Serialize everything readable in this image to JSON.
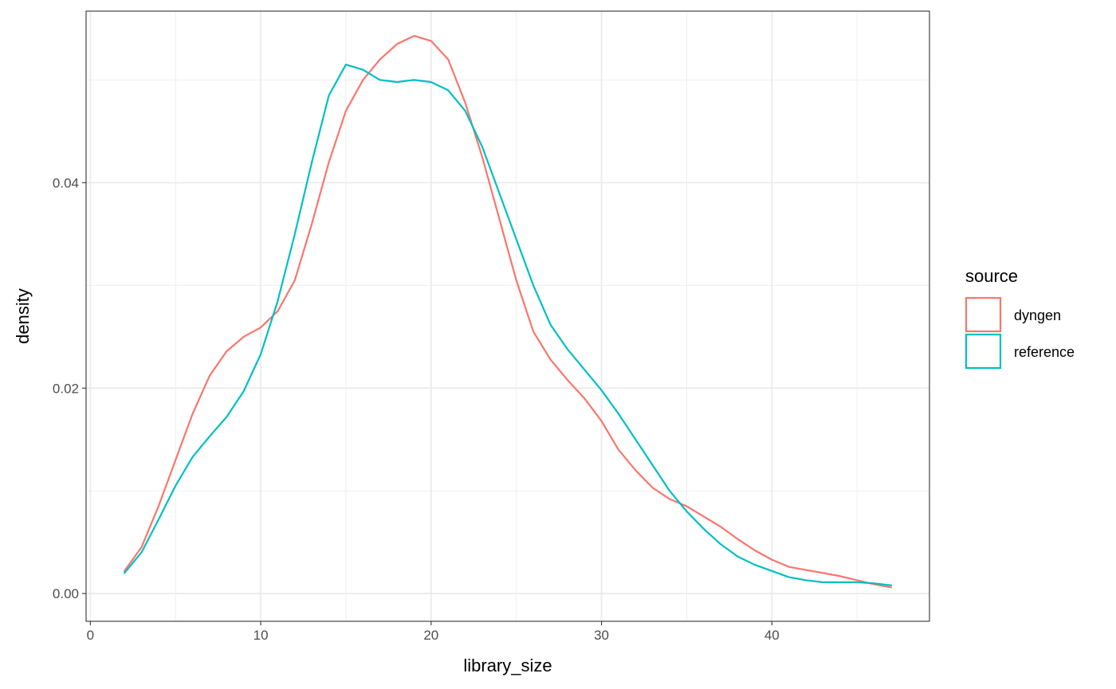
{
  "chart_data": {
    "type": "line",
    "title": "",
    "xlabel": "library_size",
    "ylabel": "density",
    "xlim": [
      -0.25,
      49.25
    ],
    "ylim": [
      -0.0027,
      0.0567
    ],
    "x_ticks": [
      0,
      10,
      20,
      30,
      40
    ],
    "x_tick_labels": [
      "0",
      "10",
      "20",
      "30",
      "40"
    ],
    "y_ticks": [
      0.0,
      0.02,
      0.04
    ],
    "y_tick_labels": [
      "0.00",
      "0.02",
      "0.04"
    ],
    "grid": true,
    "legend": {
      "title": "source",
      "position": "right"
    },
    "series": [
      {
        "name": "dyngen",
        "color": "#F8766D",
        "x": [
          2,
          3,
          4,
          5,
          6,
          7,
          8,
          9,
          10,
          11,
          12,
          13,
          14,
          15,
          16,
          17,
          18,
          19,
          20,
          21,
          22,
          23,
          24,
          25,
          26,
          27,
          28,
          29,
          30,
          31,
          32,
          33,
          34,
          35,
          36,
          37,
          38,
          39,
          40,
          41,
          42,
          43,
          44,
          45,
          46,
          47
        ],
        "y": [
          0.0022,
          0.0045,
          0.0085,
          0.013,
          0.0175,
          0.0212,
          0.0236,
          0.025,
          0.0259,
          0.0275,
          0.0305,
          0.036,
          0.042,
          0.047,
          0.05,
          0.052,
          0.0535,
          0.0543,
          0.0538,
          0.052,
          0.0478,
          0.0425,
          0.0365,
          0.0305,
          0.0255,
          0.0228,
          0.0208,
          0.019,
          0.0168,
          0.014,
          0.012,
          0.0103,
          0.0092,
          0.0085,
          0.0075,
          0.0065,
          0.0053,
          0.0042,
          0.0033,
          0.0026,
          0.0023,
          0.002,
          0.0017,
          0.0013,
          0.0009,
          0.0006
        ]
      },
      {
        "name": "reference",
        "color": "#00BFC4",
        "x": [
          2,
          3,
          4,
          5,
          6,
          7,
          8,
          9,
          10,
          11,
          12,
          13,
          14,
          15,
          16,
          17,
          18,
          19,
          20,
          21,
          22,
          23,
          24,
          25,
          26,
          27,
          28,
          29,
          30,
          31,
          32,
          33,
          34,
          35,
          36,
          37,
          38,
          39,
          40,
          41,
          42,
          43,
          44,
          45,
          46,
          47
        ],
        "y": [
          0.002,
          0.004,
          0.0072,
          0.0105,
          0.0133,
          0.0153,
          0.0172,
          0.0197,
          0.0233,
          0.0285,
          0.035,
          0.042,
          0.0485,
          0.0515,
          0.051,
          0.05,
          0.0498,
          0.05,
          0.0498,
          0.049,
          0.047,
          0.0435,
          0.039,
          0.0345,
          0.03,
          0.0262,
          0.0238,
          0.0218,
          0.0198,
          0.0175,
          0.015,
          0.0125,
          0.01,
          0.008,
          0.0063,
          0.0048,
          0.0036,
          0.0028,
          0.0022,
          0.0016,
          0.0013,
          0.0011,
          0.0011,
          0.0011,
          0.001,
          0.0008
        ]
      }
    ]
  }
}
